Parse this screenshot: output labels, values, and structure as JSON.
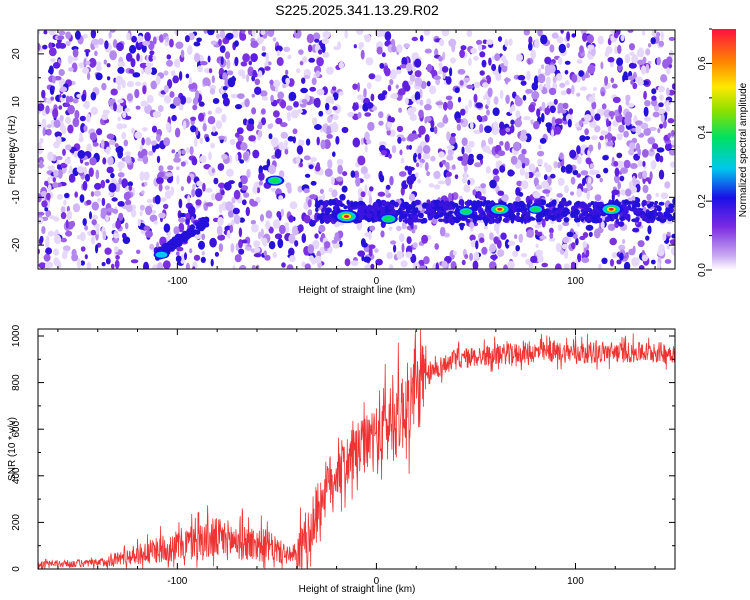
{
  "title": "S225.2025.341.13.29.R02",
  "colors": {
    "snr_line": "#ee3333",
    "axis": "#000000"
  },
  "chart_data": [
    {
      "type": "heatmap",
      "xlabel": "Height of straight line (km)",
      "ylabel": "Frequency (Hz)",
      "xlim": [
        -170,
        150
      ],
      "ylim": [
        -25,
        25
      ],
      "xticks": [
        -100,
        0,
        100
      ],
      "yticks": [
        -20,
        -10,
        0,
        10,
        20
      ],
      "colorbar": {
        "label": "Normalized spectral amplitude",
        "range": [
          0,
          0.7
        ],
        "ticks": [
          0.0,
          0.2,
          0.4,
          0.6
        ],
        "tick_labels": [
          "0.0",
          "0.2",
          "0.4",
          "0.6"
        ]
      },
      "ridge": {
        "freq_hz": -13,
        "x_start": -30,
        "x_end": 150
      },
      "hotspots": [
        {
          "x": -108,
          "y": -22,
          "amp": 0.25
        },
        {
          "x": -51,
          "y": -6.5,
          "amp": 0.35
        },
        {
          "x": -15,
          "y": -14,
          "amp": 0.55
        },
        {
          "x": 6,
          "y": -14.5,
          "amp": 0.35
        },
        {
          "x": 45,
          "y": -13,
          "amp": 0.3
        },
        {
          "x": 62,
          "y": -12.5,
          "amp": 0.5
        },
        {
          "x": 80,
          "y": -12.5,
          "amp": 0.3
        },
        {
          "x": 118,
          "y": -12.5,
          "amp": 0.5
        }
      ]
    },
    {
      "type": "line",
      "xlabel": "Height of straight line (km)",
      "ylabel": "SNR (10 * v/v)",
      "xlim": [
        -170,
        150
      ],
      "ylim": [
        0,
        1030
      ],
      "xticks": [
        -100,
        0,
        100
      ],
      "yticks": [
        0,
        200,
        400,
        600,
        800,
        1000
      ],
      "series": [
        {
          "x": [
            -170,
            -140,
            -130,
            -110,
            -90,
            -80,
            -70,
            -55,
            -45,
            -40,
            -35,
            -30,
            -25,
            -20,
            -15,
            -10,
            -5,
            0,
            5,
            10,
            15,
            20,
            25,
            30,
            40,
            60,
            80,
            100,
            120,
            150
          ],
          "y": [
            20,
            25,
            45,
            80,
            120,
            130,
            120,
            100,
            60,
            50,
            100,
            250,
            350,
            420,
            450,
            500,
            540,
            580,
            620,
            650,
            700,
            760,
            820,
            860,
            900,
            920,
            930,
            930,
            930,
            930
          ]
        }
      ]
    }
  ]
}
